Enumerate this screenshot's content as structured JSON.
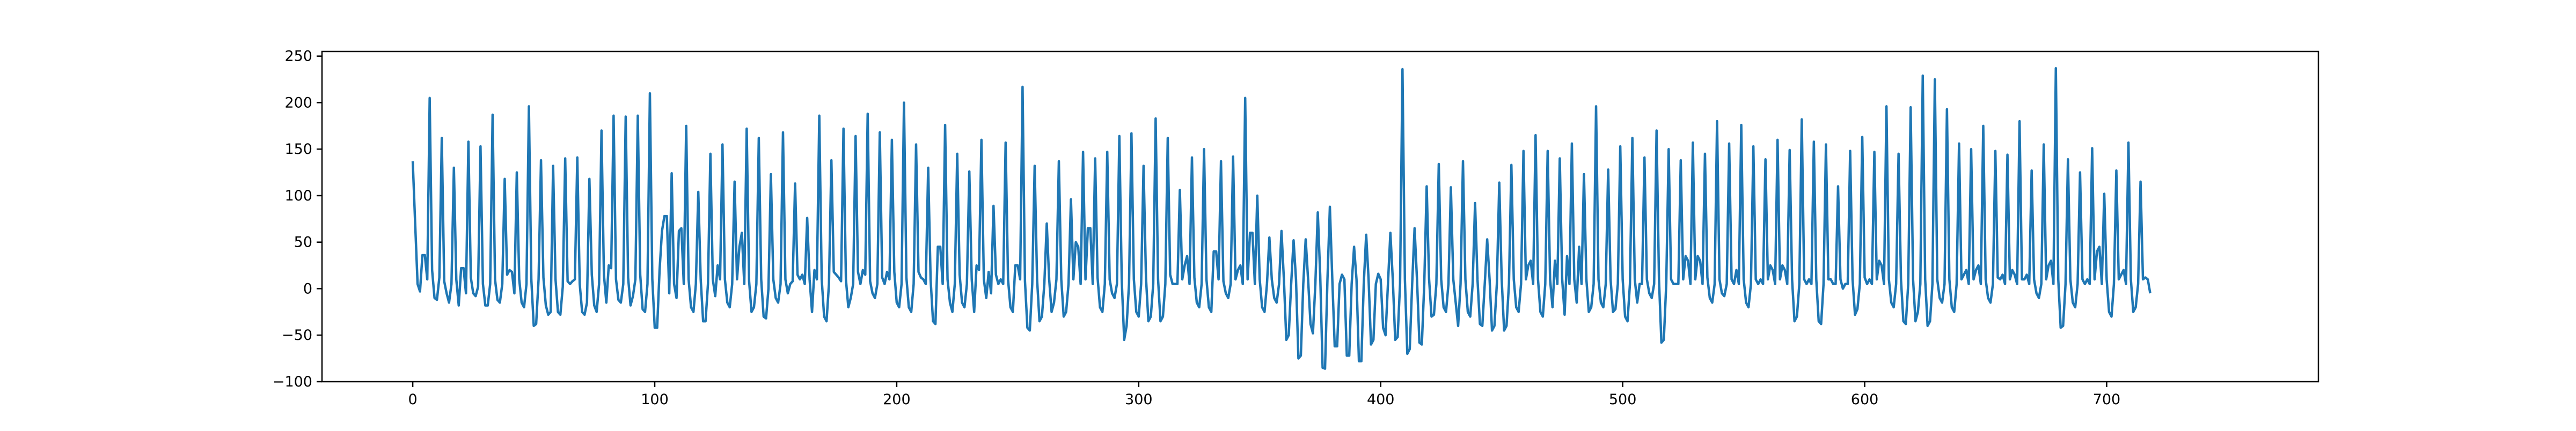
{
  "chart_data": {
    "type": "line",
    "title": "",
    "xlabel": "",
    "ylabel": "",
    "xlim": [
      -37.5,
      787.5
    ],
    "ylim": [
      -100,
      255
    ],
    "x_ticks": [
      0,
      100,
      200,
      300,
      400,
      500,
      600,
      700
    ],
    "y_ticks": [
      -100,
      -50,
      0,
      50,
      100,
      150,
      200,
      250
    ],
    "x_tick_labels": [
      "0",
      "100",
      "200",
      "300",
      "400",
      "500",
      "600",
      "700"
    ],
    "y_tick_labels": [
      "−100",
      "−50",
      "0",
      "50",
      "100",
      "150",
      "200",
      "250"
    ],
    "grid": false,
    "legend": "none",
    "series": [
      {
        "color": "#1f77b4",
        "x_start": 0,
        "x_step": 1,
        "values": [
          137,
          70,
          5,
          -3,
          36,
          36,
          10,
          205,
          20,
          -10,
          -12,
          12,
          162,
          8,
          -5,
          -15,
          5,
          130,
          10,
          -18,
          22,
          22,
          -5,
          158,
          12,
          -5,
          -8,
          2,
          153,
          5,
          -18,
          -18,
          5,
          187,
          10,
          -12,
          -15,
          5,
          118,
          15,
          20,
          18,
          -5,
          125,
          10,
          -15,
          -20,
          5,
          196,
          10,
          -40,
          -38,
          10,
          138,
          12,
          -18,
          -28,
          -25,
          132,
          10,
          -25,
          -28,
          2,
          140,
          8,
          5,
          8,
          10,
          141,
          5,
          -25,
          -28,
          -15,
          118,
          15,
          -18,
          -25,
          5,
          170,
          15,
          -15,
          25,
          22,
          186,
          10,
          -12,
          -15,
          5,
          185,
          12,
          -18,
          -8,
          10,
          186,
          15,
          -22,
          -25,
          5,
          210,
          10,
          -42,
          -42,
          20,
          62,
          78,
          78,
          -5,
          124,
          5,
          -10,
          62,
          65,
          5,
          175,
          10,
          -20,
          -25,
          5,
          104,
          10,
          -35,
          -35,
          5,
          145,
          10,
          -8,
          25,
          10,
          155,
          10,
          -15,
          -20,
          5,
          115,
          10,
          45,
          60,
          5,
          172,
          8,
          -25,
          -20,
          5,
          162,
          10,
          -30,
          -32,
          0,
          123,
          10,
          -10,
          -15,
          5,
          168,
          10,
          -5,
          5,
          8,
          113,
          15,
          10,
          15,
          5,
          76,
          10,
          -25,
          20,
          10,
          186,
          10,
          -30,
          -35,
          5,
          138,
          18,
          15,
          12,
          8,
          172,
          10,
          -20,
          -10,
          5,
          164,
          18,
          5,
          20,
          15,
          188,
          8,
          -5,
          -10,
          5,
          168,
          12,
          5,
          18,
          10,
          160,
          18,
          -15,
          -20,
          5,
          200,
          12,
          -20,
          -25,
          5,
          155,
          18,
          12,
          10,
          5,
          130,
          10,
          -35,
          -38,
          45,
          45,
          5,
          176,
          10,
          -15,
          -25,
          5,
          145,
          15,
          -15,
          -20,
          5,
          126,
          10,
          -25,
          25,
          20,
          160,
          10,
          -10,
          18,
          -5,
          89,
          15,
          5,
          10,
          5,
          157,
          10,
          -20,
          -25,
          25,
          25,
          10,
          217,
          8,
          -42,
          -45,
          5,
          132,
          10,
          -35,
          -30,
          5,
          70,
          10,
          -25,
          -15,
          10,
          137,
          10,
          -30,
          -25,
          5,
          96,
          10,
          50,
          45,
          5,
          147,
          10,
          65,
          65,
          5,
          140,
          12,
          -20,
          -25,
          5,
          147,
          10,
          -5,
          -10,
          5,
          164,
          8,
          -55,
          -40,
          5,
          167,
          10,
          -25,
          -30,
          5,
          132,
          12,
          -35,
          -30,
          5,
          183,
          10,
          -35,
          -30,
          5,
          162,
          15,
          5,
          5,
          5,
          106,
          10,
          25,
          35,
          5,
          141,
          12,
          -15,
          -20,
          5,
          150,
          10,
          -20,
          -25,
          40,
          40,
          10,
          137,
          8,
          -5,
          -10,
          5,
          142,
          10,
          20,
          25,
          5,
          205,
          10,
          60,
          60,
          5,
          100,
          10,
          -20,
          -25,
          5,
          55,
          10,
          -10,
          -15,
          5,
          62,
          10,
          -55,
          -50,
          5,
          52,
          10,
          -75,
          -72,
          5,
          53,
          10,
          -38,
          -48,
          5,
          82,
          15,
          -85,
          -86,
          10,
          88,
          10,
          -62,
          -62,
          5,
          15,
          10,
          -72,
          -72,
          5,
          45,
          10,
          -78,
          -78,
          5,
          58,
          10,
          -60,
          -55,
          5,
          16,
          10,
          -42,
          -50,
          5,
          60,
          10,
          -55,
          -52,
          5,
          236,
          10,
          -70,
          -65,
          5,
          65,
          10,
          -58,
          -60,
          5,
          110,
          10,
          -30,
          -28,
          5,
          134,
          10,
          -20,
          -25,
          5,
          109,
          10,
          -15,
          -40,
          5,
          137,
          10,
          -25,
          -30,
          5,
          92,
          10,
          -38,
          -40,
          5,
          53,
          10,
          -45,
          -40,
          5,
          114,
          10,
          -45,
          -40,
          5,
          133,
          10,
          -20,
          -25,
          5,
          148,
          10,
          25,
          30,
          5,
          165,
          10,
          -25,
          -30,
          5,
          148,
          10,
          -20,
          30,
          5,
          140,
          10,
          -28,
          35,
          5,
          156,
          10,
          -15,
          45,
          5,
          123,
          10,
          -25,
          -20,
          5,
          196,
          10,
          -15,
          -20,
          5,
          128,
          10,
          -25,
          -22,
          5,
          153,
          10,
          -30,
          -35,
          5,
          162,
          10,
          -15,
          5,
          5,
          141,
          10,
          -5,
          -10,
          5,
          170,
          10,
          -58,
          -55,
          5,
          150,
          10,
          5,
          5,
          5,
          138,
          10,
          35,
          30,
          5,
          157,
          10,
          35,
          30,
          5,
          145,
          12,
          -10,
          -15,
          5,
          180,
          10,
          -5,
          -8,
          5,
          156,
          10,
          5,
          20,
          5,
          176,
          10,
          -15,
          -20,
          5,
          153,
          10,
          5,
          10,
          5,
          139,
          10,
          25,
          20,
          5,
          160,
          10,
          25,
          20,
          5,
          149,
          10,
          -35,
          -30,
          5,
          182,
          10,
          5,
          10,
          5,
          158,
          10,
          -35,
          -38,
          5,
          155,
          10,
          10,
          5,
          5,
          110,
          10,
          0,
          5,
          5,
          148,
          10,
          -28,
          -22,
          5,
          163,
          12,
          5,
          10,
          5,
          147,
          10,
          30,
          25,
          5,
          196,
          10,
          -15,
          -20,
          5,
          145,
          10,
          -35,
          -38,
          5,
          195,
          10,
          -35,
          -25,
          5,
          229,
          10,
          -40,
          -35,
          5,
          225,
          10,
          -10,
          -15,
          5,
          193,
          10,
          -20,
          -25,
          5,
          156,
          10,
          15,
          20,
          5,
          150,
          10,
          20,
          25,
          5,
          175,
          10,
          -10,
          -15,
          5,
          148,
          12,
          10,
          15,
          5,
          144,
          10,
          20,
          15,
          5,
          180,
          10,
          10,
          15,
          5,
          127,
          10,
          -5,
          -10,
          5,
          155,
          10,
          25,
          30,
          5,
          237,
          10,
          -42,
          -40,
          5,
          139,
          10,
          -15,
          -20,
          5,
          125,
          10,
          5,
          10,
          5,
          151,
          10,
          40,
          45,
          5,
          102,
          10,
          -25,
          -30,
          5,
          127,
          10,
          15,
          20,
          5,
          157,
          10,
          -25,
          -20,
          5,
          115,
          10,
          12,
          10,
          -5
        ]
      }
    ]
  }
}
